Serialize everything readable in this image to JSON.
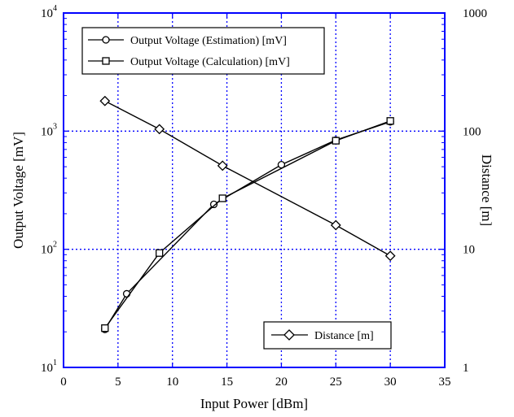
{
  "chart_data": {
    "type": "line",
    "xlabel": "Input Power [dBm]",
    "ylabel": "Output Voltage [mV]",
    "y2label": "Distance [m]",
    "xlim": [
      0,
      35
    ],
    "xticks": [
      "0",
      "5",
      "10",
      "15",
      "20",
      "25",
      "30",
      "35"
    ],
    "ylim": [
      10,
      10000
    ],
    "yscale": "log",
    "yticks": [
      {
        "base": "10",
        "exp": "1"
      },
      {
        "base": "10",
        "exp": "2"
      },
      {
        "base": "10",
        "exp": "3"
      },
      {
        "base": "10",
        "exp": "4"
      }
    ],
    "y2lim": [
      1,
      1000
    ],
    "y2scale": "log",
    "y2ticks": [
      "1",
      "10",
      "100",
      "1000"
    ],
    "grid": true,
    "accent_color": "#0000ff",
    "series": [
      {
        "name": "Output Voltage (Estimation) [mV]",
        "marker": "circle",
        "axis": "left",
        "x": [
          3.8,
          5.8,
          13.8,
          20,
          25,
          30
        ],
        "y": [
          21,
          42,
          240,
          520,
          840,
          1200
        ]
      },
      {
        "name": "Output Voltage (Calculation) [mV]",
        "marker": "square",
        "axis": "left",
        "x": [
          3.8,
          8.8,
          14.6,
          25,
          30
        ],
        "y": [
          21.5,
          93,
          270,
          830,
          1220
        ]
      },
      {
        "name": "Distance [m]",
        "marker": "diamond",
        "axis": "right",
        "x": [
          3.8,
          8.8,
          14.6,
          25,
          30
        ],
        "y": [
          180,
          104,
          51,
          16,
          8.8
        ]
      }
    ],
    "legend": {
      "top": [
        "Output Voltage (Estimation) [mV]",
        "Output Voltage (Calculation) [mV]"
      ],
      "bottom": [
        "Distance [m]"
      ]
    }
  }
}
